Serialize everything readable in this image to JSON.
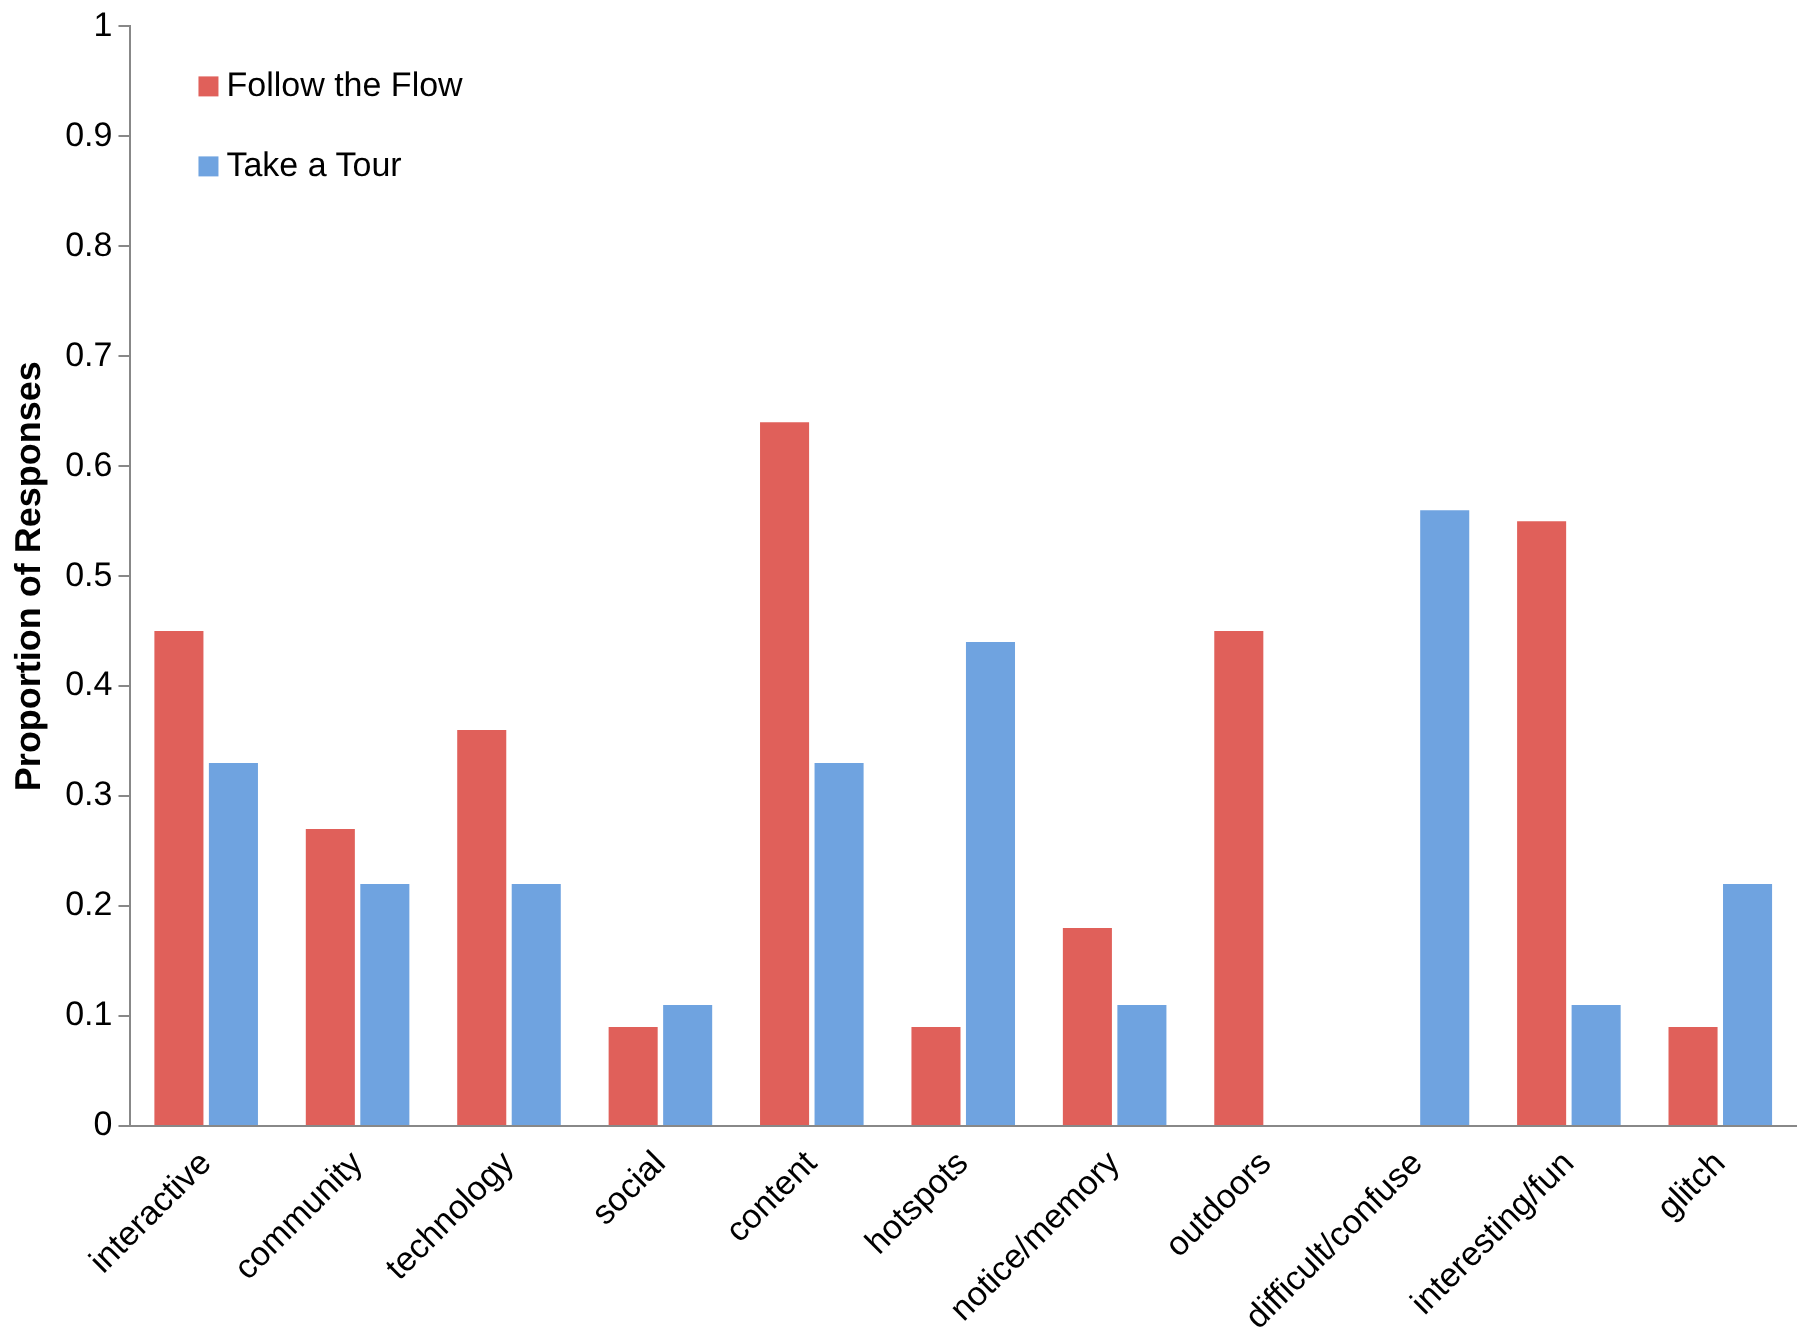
{
  "chart_data": {
    "type": "bar",
    "ylabel": "Proportion of Responses",
    "categories": [
      "interactive",
      "community",
      "technology",
      "social",
      "content",
      "hotspots",
      "notice/memory",
      "outdoors",
      "difficult/confuse",
      "interesting/fun",
      "glitch"
    ],
    "series": [
      {
        "name": "Follow the Flow",
        "color": "#e0605a",
        "values": [
          0.45,
          0.27,
          0.36,
          0.09,
          0.64,
          0.09,
          0.18,
          0.45,
          0,
          0.55,
          0.09
        ]
      },
      {
        "name": "Take a Tour",
        "color": "#6fa3e0",
        "values": [
          0.33,
          0.22,
          0.22,
          0.11,
          0.33,
          0.44,
          0.11,
          0,
          0.56,
          0.11,
          0.22
        ]
      }
    ],
    "ylim": [
      0,
      1
    ],
    "yticks": [
      0,
      0.1,
      0.2,
      0.3,
      0.4,
      0.5,
      0.6,
      0.7,
      0.8,
      0.9,
      1
    ],
    "grid": false,
    "legend": "top left"
  }
}
